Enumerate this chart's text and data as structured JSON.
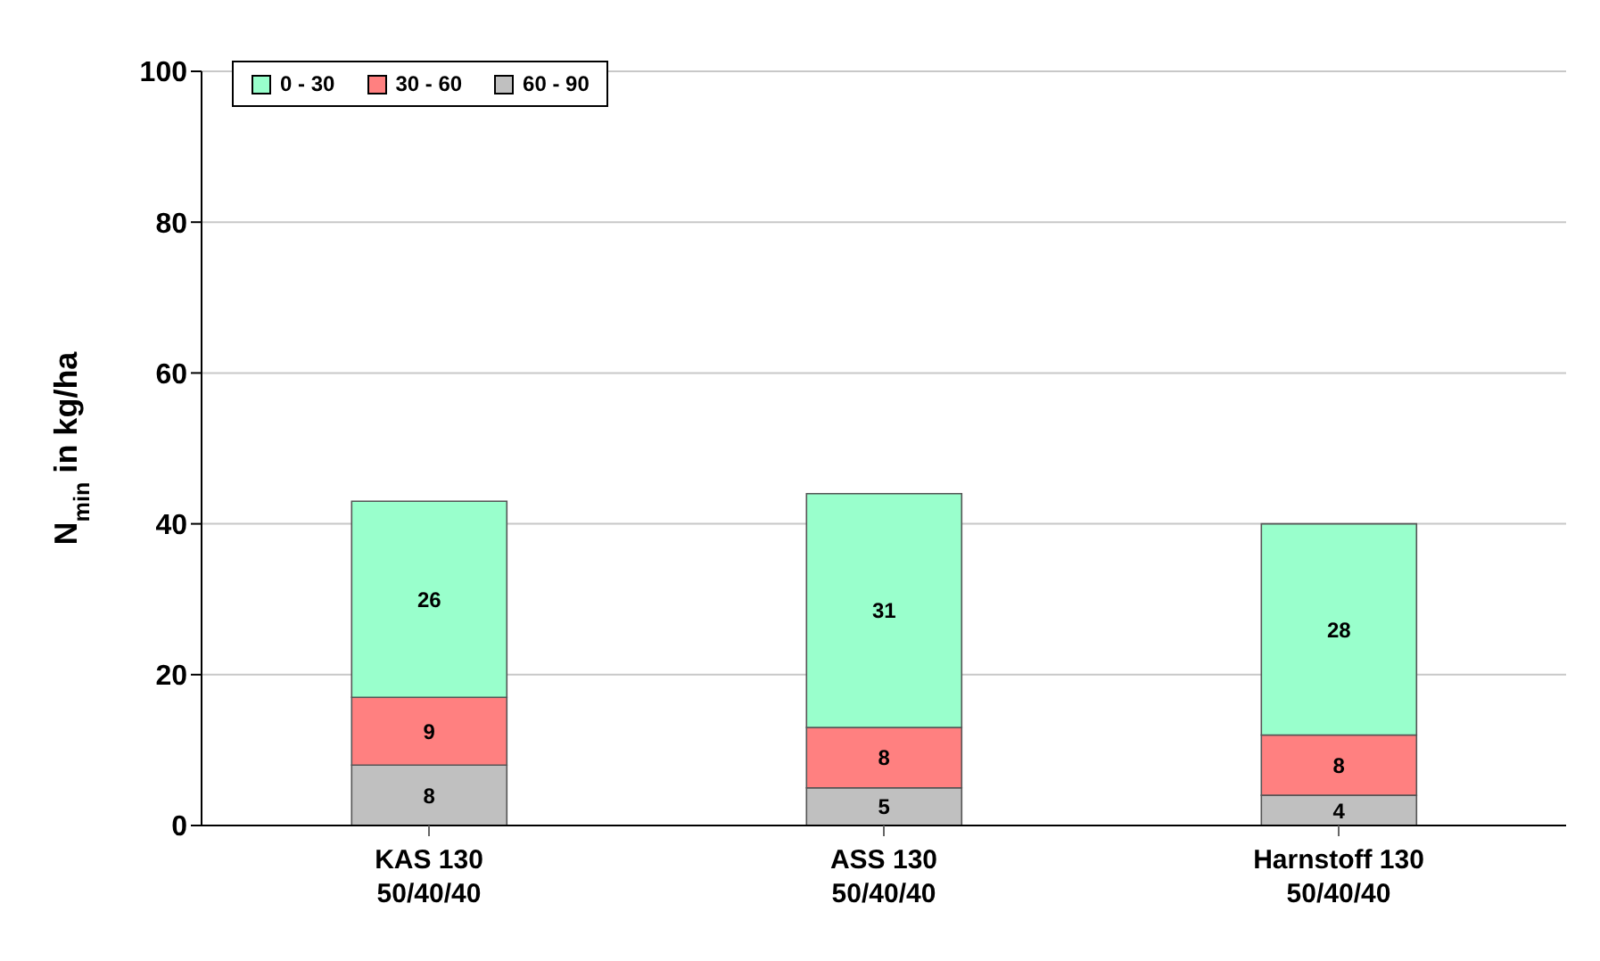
{
  "chart_data": {
    "type": "bar",
    "stacked": true,
    "ylabel": "N$_{min}$ in kg/ha",
    "categories": [
      "KAS 130\n50/40/40",
      "ASS 130\n50/40/40",
      "Harnstoff 130\n50/40/40"
    ],
    "series": [
      {
        "name": "60 - 90",
        "color": "#c0c0c0",
        "values": [
          8,
          5,
          4
        ]
      },
      {
        "name": "30 - 60",
        "color": "#ff8080",
        "values": [
          9,
          8,
          8
        ]
      },
      {
        "name": "0 - 30",
        "color": "#99ffcc",
        "values": [
          26,
          31,
          28
        ]
      }
    ],
    "ylim": [
      0,
      100
    ],
    "yticks": [
      0,
      20,
      40,
      60,
      80,
      100
    ],
    "grid": "y",
    "legend": "top left",
    "data_labels": true
  }
}
